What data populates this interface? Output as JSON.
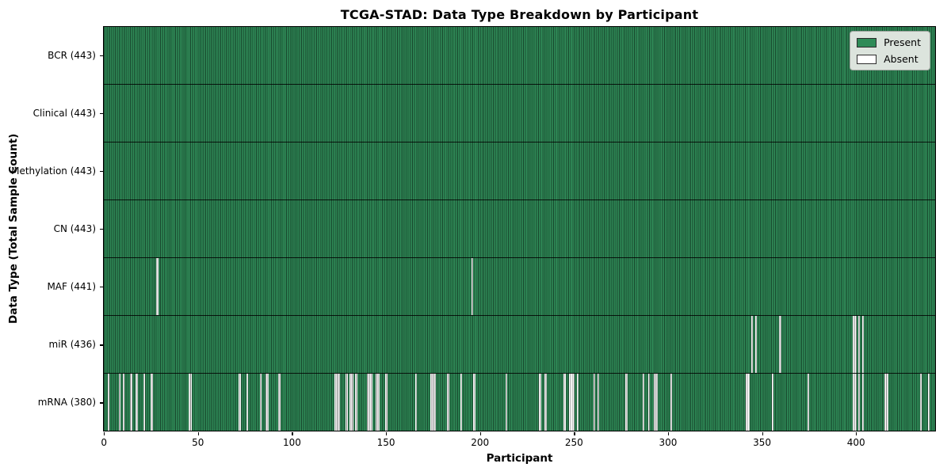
{
  "title": "TCGA-STAD: Data Type Breakdown by Participant",
  "axes": {
    "xlabel": "Participant",
    "ylabel": "Data Type (Total Sample Count)"
  },
  "legend": {
    "items": [
      {
        "label": "Present",
        "color": "#2e8b57"
      },
      {
        "label": "Absent",
        "color": "#ffffff"
      }
    ]
  },
  "chart_data": {
    "type": "heatmap",
    "title": "TCGA-STAD: Data Type Breakdown by Participant",
    "xlabel": "Participant",
    "ylabel": "Data Type (Total Sample Count)",
    "n_participants": 443,
    "x_range": [
      0,
      442
    ],
    "xticks": [
      0,
      50,
      100,
      150,
      200,
      250,
      300,
      350,
      400
    ],
    "colors": {
      "present": "#2e8b57",
      "absent": "#ffffff"
    },
    "legend_position": "upper right",
    "rows": [
      {
        "label": "BCR",
        "total": 443,
        "display": "BCR (443)",
        "absent_participants": []
      },
      {
        "label": "Clinical",
        "total": 443,
        "display": "Clinical (443)",
        "absent_participants": []
      },
      {
        "label": "Methylation",
        "total": 443,
        "display": "Methylation (443)",
        "absent_participants": []
      },
      {
        "label": "CN",
        "total": 443,
        "display": "CN (443)",
        "absent_participants": []
      },
      {
        "label": "MAF",
        "total": 441,
        "display": "MAF (441)",
        "absent_participants": [
          28,
          196
        ]
      },
      {
        "label": "miR",
        "total": 436,
        "display": "miR (436)",
        "absent_participants": [
          345,
          347,
          360,
          399,
          400,
          402,
          404
        ]
      },
      {
        "label": "mRNA",
        "total": 380,
        "display": "mRNA (380)",
        "absent_participants": [
          2,
          8,
          10,
          14,
          17,
          21,
          25,
          45,
          46,
          72,
          76,
          83,
          86,
          87,
          93,
          123,
          124,
          125,
          129,
          131,
          132,
          134,
          140,
          141,
          142,
          145,
          146,
          150,
          166,
          174,
          175,
          176,
          183,
          190,
          197,
          214,
          232,
          235,
          245,
          248,
          249,
          250,
          252,
          261,
          263,
          278,
          287,
          290,
          293,
          294,
          302,
          342,
          343,
          356,
          375,
          399,
          400,
          402,
          404,
          416,
          417,
          435,
          439
        ]
      }
    ]
  }
}
